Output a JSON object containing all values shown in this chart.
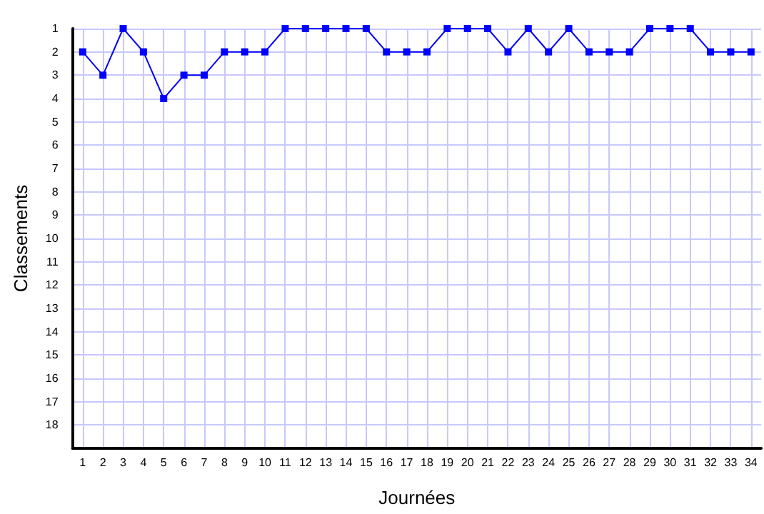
{
  "chart_data": {
    "type": "line",
    "xlabel": "Journées",
    "ylabel": "Classements",
    "x": [
      1,
      2,
      3,
      4,
      5,
      6,
      7,
      8,
      9,
      10,
      11,
      12,
      13,
      14,
      15,
      16,
      17,
      18,
      19,
      20,
      21,
      22,
      23,
      24,
      25,
      26,
      27,
      28,
      29,
      30,
      31,
      32,
      33,
      34
    ],
    "series": [
      {
        "color": "#0000ff",
        "values": [
          2,
          3,
          1,
          2,
          4,
          3,
          3,
          2,
          2,
          2,
          1,
          1,
          1,
          1,
          1,
          2,
          2,
          2,
          1,
          1,
          1,
          2,
          1,
          2,
          1,
          2,
          2,
          2,
          1,
          1,
          1,
          2,
          2,
          2
        ]
      }
    ],
    "xlim": [
      0.5,
      34.5
    ],
    "xticks": [
      1,
      2,
      3,
      4,
      5,
      6,
      7,
      8,
      9,
      10,
      11,
      12,
      13,
      14,
      15,
      16,
      17,
      18,
      19,
      20,
      21,
      22,
      23,
      24,
      25,
      26,
      27,
      28,
      29,
      30,
      31,
      32,
      33,
      34
    ],
    "ylim": [
      19,
      1
    ],
    "yticks": [
      1,
      2,
      3,
      4,
      5,
      6,
      7,
      8,
      9,
      10,
      11,
      12,
      13,
      14,
      15,
      16,
      17,
      18
    ],
    "grid": true,
    "marker": "square",
    "line_style": "solid"
  }
}
